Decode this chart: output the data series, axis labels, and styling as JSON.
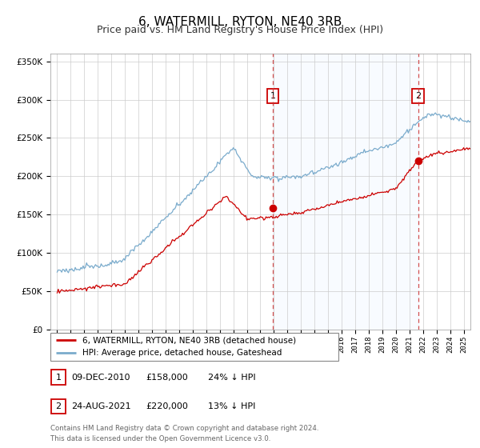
{
  "title": "6, WATERMILL, RYTON, NE40 3RB",
  "subtitle": "Price paid vs. HM Land Registry's House Price Index (HPI)",
  "legend_line1": "6, WATERMILL, RYTON, NE40 3RB (detached house)",
  "legend_line2": "HPI: Average price, detached house, Gateshead",
  "transaction1_label": "1",
  "transaction1_date": "09-DEC-2010",
  "transaction1_price": "£158,000",
  "transaction1_hpi": "24% ↓ HPI",
  "transaction1_year": 2010.92,
  "transaction1_value": 158000,
  "transaction2_label": "2",
  "transaction2_date": "24-AUG-2021",
  "transaction2_price": "£220,000",
  "transaction2_hpi": "13% ↓ HPI",
  "transaction2_year": 2021.64,
  "transaction2_value": 220000,
  "property_color": "#cc0000",
  "hpi_color": "#7aabcc",
  "shade_color": "#ddeeff",
  "background_color": "#ffffff",
  "footer_text": "Contains HM Land Registry data © Crown copyright and database right 2024.\nThis data is licensed under the Open Government Licence v3.0.",
  "ylim": [
    0,
    360000
  ],
  "xlim_start": 1994.5,
  "xlim_end": 2025.5,
  "title_fontsize": 11,
  "subtitle_fontsize": 9
}
